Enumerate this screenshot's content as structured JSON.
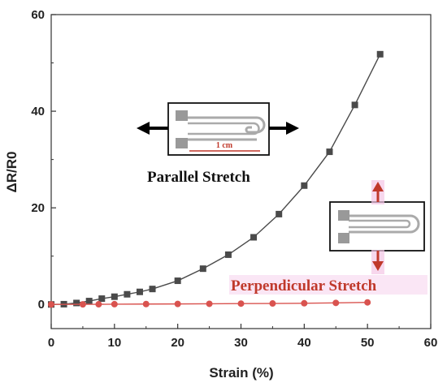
{
  "chart_data": {
    "type": "line",
    "xlabel": "Strain (%)",
    "ylabel": "ΔR/R0",
    "xlim": [
      0,
      60
    ],
    "ylim": [
      -5,
      60
    ],
    "xticks": [
      0,
      10,
      20,
      30,
      40,
      50,
      60
    ],
    "yticks": [
      0,
      20,
      40,
      60
    ],
    "series": [
      {
        "name": "Parallel Stretch",
        "color": "#4a4a4a",
        "marker": "square",
        "x": [
          0,
          2,
          4,
          6,
          8,
          10,
          12,
          14,
          16,
          20,
          24,
          28,
          32,
          36,
          40,
          44,
          48,
          52
        ],
        "y": [
          0,
          0.05,
          0.3,
          0.7,
          1.2,
          1.6,
          2.1,
          2.6,
          3.2,
          4.9,
          7.4,
          10.3,
          13.9,
          18.7,
          24.6,
          31.6,
          41.3,
          51.8
        ]
      },
      {
        "name": "Perpendicular Stretch",
        "color": "#d9534f",
        "marker": "circle",
        "x": [
          0,
          5,
          7.5,
          10,
          15,
          20,
          25,
          30,
          35,
          40,
          45,
          50
        ],
        "y": [
          0,
          0.02,
          0.03,
          0.05,
          0.08,
          0.1,
          0.13,
          0.17,
          0.2,
          0.24,
          0.32,
          0.42
        ]
      }
    ],
    "annotations": {
      "parallel": "Parallel Stretch",
      "perpendicular": "Perpendicular Stretch",
      "scale": "1 cm"
    }
  }
}
